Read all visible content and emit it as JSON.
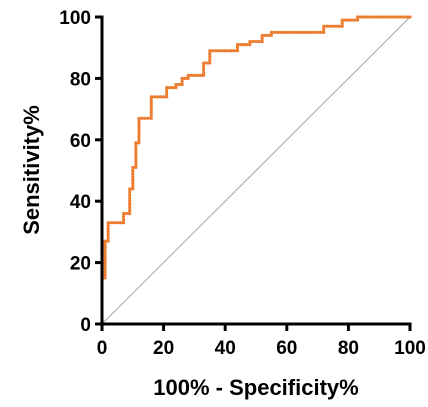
{
  "chart_data": {
    "type": "line",
    "xlabel": "100% - Specificity%",
    "ylabel": "Sensitivity%",
    "xlim": [
      0,
      100
    ],
    "ylim": [
      0,
      100
    ],
    "xticks": [
      "0",
      "20",
      "40",
      "60",
      "80",
      "100"
    ],
    "yticks": [
      "0",
      "20",
      "40",
      "60",
      "80",
      "100"
    ],
    "grid": false,
    "legend": "none",
    "reference_line": {
      "x": [
        0,
        100
      ],
      "y": [
        0,
        100
      ],
      "color": "#a6a6a6"
    },
    "series": [
      {
        "color": "#ed7d31",
        "x": [
          0,
          0,
          1,
          1,
          2,
          2,
          7,
          7,
          9,
          9,
          10,
          10,
          11,
          11,
          12,
          12,
          16,
          16,
          21,
          21,
          24,
          24,
          26,
          26,
          28,
          28,
          33,
          33,
          35,
          35,
          44,
          44,
          48,
          48,
          52,
          52,
          55,
          55,
          72,
          72,
          78,
          78,
          83,
          83,
          100
        ],
        "y": [
          0,
          15,
          15,
          27,
          27,
          33,
          33,
          36,
          36,
          44,
          44,
          51,
          51,
          59,
          59,
          67,
          67,
          74,
          74,
          77,
          77,
          78,
          78,
          80,
          80,
          81,
          81,
          85,
          85,
          89,
          89,
          91,
          91,
          92,
          92,
          94,
          94,
          95,
          95,
          97,
          97,
          99,
          99,
          100,
          100
        ]
      }
    ]
  }
}
